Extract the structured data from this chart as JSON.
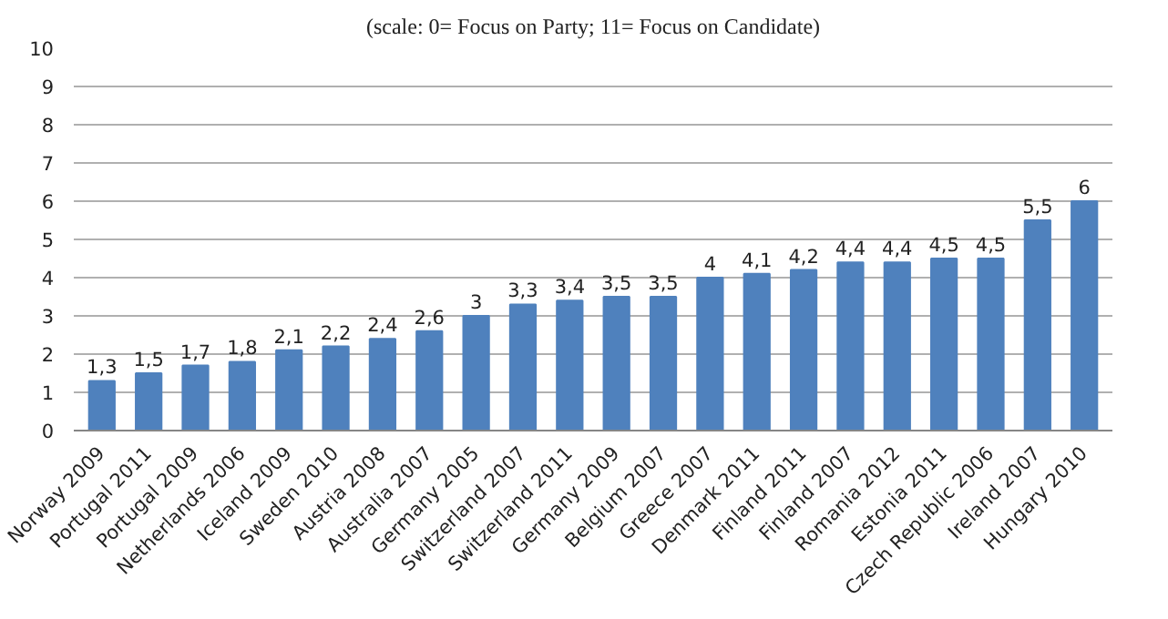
{
  "chart_data": {
    "type": "bar",
    "subtitle": "(scale: 0= Focus on Party; 11= Focus on Candidate)",
    "categories": [
      "Norway 2009",
      "Portugal 2011",
      "Portugal 2009",
      "Netherlands 2006",
      "Iceland 2009",
      "Sweden 2010",
      "Austria 2008",
      "Australia 2007",
      "Germany 2005",
      "Switzerland 2007",
      "Switzerland 2011",
      "Germany 2009",
      "Belgium 2007",
      "Greece 2007",
      "Denmark 2011",
      "Finland 2011",
      "Finland 2007",
      "Romania 2012",
      "Estonia 2011",
      "Czech Republic 2006",
      "Ireland 2007",
      "Hungary 2010"
    ],
    "values": [
      1.3,
      1.5,
      1.7,
      1.8,
      2.1,
      2.2,
      2.4,
      2.6,
      3,
      3.3,
      3.4,
      3.5,
      3.5,
      4,
      4.1,
      4.2,
      4.4,
      4.4,
      4.5,
      4.5,
      5.5,
      6
    ],
    "value_labels": [
      "1,3",
      "1,5",
      "1,7",
      "1,8",
      "2,1",
      "2,2",
      "2,4",
      "2,6",
      "3",
      "3,3",
      "3,4",
      "3,5",
      "3,5",
      "4",
      "4,1",
      "4,2",
      "4,4",
      "4,4",
      "4,5",
      "4,5",
      "5,5",
      "6"
    ],
    "color": "#4f81bd",
    "ylim": [
      0,
      10
    ],
    "yticks": [
      0,
      1,
      2,
      3,
      4,
      5,
      6,
      7,
      8,
      9,
      10
    ],
    "grid": "y"
  }
}
